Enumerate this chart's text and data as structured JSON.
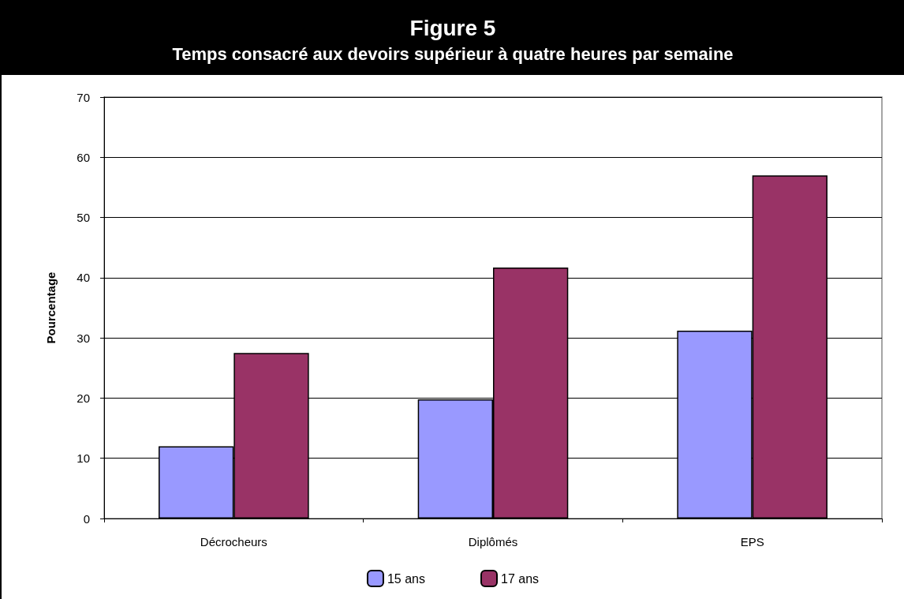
{
  "chart_data": {
    "type": "bar",
    "title": "Figure 5",
    "subtitle": "Temps consacré aux devoirs supérieur à quatre heures par semaine",
    "ylabel": "Pourcentage",
    "categories": [
      "Décrocheurs",
      "Diplômés",
      "EPS"
    ],
    "series": [
      {
        "name": "15 ans",
        "color": "#9999ff",
        "values": [
          12,
          19.8,
          31.2
        ]
      },
      {
        "name": "17 ans",
        "color": "#993366",
        "values": [
          27.5,
          41.7,
          57
        ]
      }
    ],
    "ylim": [
      0,
      70
    ],
    "yticks": [
      0,
      10,
      20,
      30,
      40,
      50,
      60,
      70
    ],
    "grid": "y",
    "legend": "bottom"
  }
}
